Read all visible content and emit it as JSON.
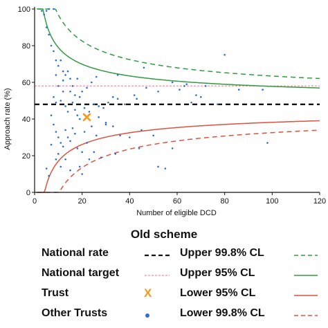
{
  "chart_data": {
    "type": "scatter",
    "title": "",
    "xlabel": "Number of eligible DCD",
    "ylabel": "Approach rate (%)",
    "xlim": [
      0,
      120
    ],
    "ylim": [
      0,
      100
    ],
    "xticks": [
      0,
      20,
      40,
      60,
      80,
      100,
      120
    ],
    "yticks": [
      0,
      20,
      40,
      60,
      80,
      100
    ],
    "national_rate": 48,
    "national_target": 58,
    "trust": {
      "x": 22,
      "y": 41
    },
    "other_trusts": [
      [
        3,
        99
      ],
      [
        5,
        99
      ],
      [
        6,
        100
      ],
      [
        8,
        100
      ],
      [
        4,
        97
      ],
      [
        5,
        90
      ],
      [
        6,
        86
      ],
      [
        7,
        80
      ],
      [
        8,
        77
      ],
      [
        9,
        72
      ],
      [
        10,
        69
      ],
      [
        11,
        72
      ],
      [
        12,
        66
      ],
      [
        10,
        58
      ],
      [
        12,
        61
      ],
      [
        13,
        64
      ],
      [
        14,
        66
      ],
      [
        15,
        55
      ],
      [
        16,
        58
      ],
      [
        18,
        62
      ],
      [
        19,
        52
      ],
      [
        20,
        55
      ],
      [
        22,
        57
      ],
      [
        24,
        60
      ],
      [
        26,
        63
      ],
      [
        8,
        52
      ],
      [
        9,
        49
      ],
      [
        11,
        50
      ],
      [
        13,
        47
      ],
      [
        14,
        44
      ],
      [
        16,
        49
      ],
      [
        17,
        45
      ],
      [
        18,
        42
      ],
      [
        19,
        40
      ],
      [
        21,
        46
      ],
      [
        23,
        44
      ],
      [
        25,
        48
      ],
      [
        27,
        47
      ],
      [
        29,
        46
      ],
      [
        31,
        49
      ],
      [
        33,
        52
      ],
      [
        35,
        51
      ],
      [
        38,
        48
      ],
      [
        42,
        53
      ],
      [
        47,
        57
      ],
      [
        52,
        55
      ],
      [
        58,
        60
      ],
      [
        63,
        58
      ],
      [
        66,
        49
      ],
      [
        68,
        53
      ],
      [
        70,
        52
      ],
      [
        72,
        58
      ],
      [
        77,
        48
      ],
      [
        80,
        75
      ],
      [
        7,
        42
      ],
      [
        8,
        37
      ],
      [
        9,
        33
      ],
      [
        10,
        30
      ],
      [
        11,
        27
      ],
      [
        12,
        25
      ],
      [
        13,
        34
      ],
      [
        14,
        30
      ],
      [
        15,
        28
      ],
      [
        16,
        35
      ],
      [
        17,
        32
      ],
      [
        18,
        24
      ],
      [
        20,
        22
      ],
      [
        22,
        27
      ],
      [
        24,
        36
      ],
      [
        26,
        31
      ],
      [
        30,
        37
      ],
      [
        33,
        36
      ],
      [
        36,
        31
      ],
      [
        40,
        30
      ],
      [
        45,
        34
      ],
      [
        50,
        31
      ],
      [
        5,
        13
      ],
      [
        6,
        9
      ],
      [
        7,
        26
      ],
      [
        9,
        18
      ],
      [
        10,
        21
      ],
      [
        11,
        14
      ],
      [
        13,
        18
      ],
      [
        15,
        12
      ],
      [
        19,
        14
      ],
      [
        20,
        10
      ],
      [
        23,
        18
      ],
      [
        28,
        19
      ],
      [
        34,
        21
      ],
      [
        44,
        24
      ],
      [
        52,
        14
      ],
      [
        55,
        13
      ],
      [
        58,
        24
      ],
      [
        46,
        68
      ],
      [
        61,
        56
      ],
      [
        86,
        56
      ],
      [
        98,
        27
      ],
      [
        12,
        55
      ],
      [
        15,
        62
      ],
      [
        21,
        33
      ],
      [
        27,
        41
      ],
      [
        9,
        64
      ],
      [
        17,
        53
      ],
      [
        25,
        22
      ],
      [
        35,
        64
      ],
      [
        30,
        38
      ],
      [
        43,
        51
      ],
      [
        64,
        59
      ],
      [
        96,
        56
      ]
    ],
    "curve_p": 0.48,
    "z_upper_998": 3.09,
    "z_upper_95": 1.96,
    "z_lower_95": 1.96,
    "z_lower_998": 3.09,
    "colors": {
      "national_rate": "#111111",
      "national_target": "#ff9fb5",
      "upper": "#2e9c3e",
      "lower": "#e0503a",
      "trust": "#f39a1e",
      "other_trusts": "#2a6fd6",
      "axis": "#111111"
    }
  },
  "legend": {
    "title": "Old scheme",
    "national_rate": "National rate",
    "national_target": "National target",
    "trust": "Trust",
    "trust_marker": "X",
    "other_trusts": "Other Trusts",
    "upper_998": "Upper 99.8% CL",
    "upper_95": "Upper 95% CL",
    "lower_95": "Lower 95% CL",
    "lower_998": "Lower 99.8% CL"
  }
}
